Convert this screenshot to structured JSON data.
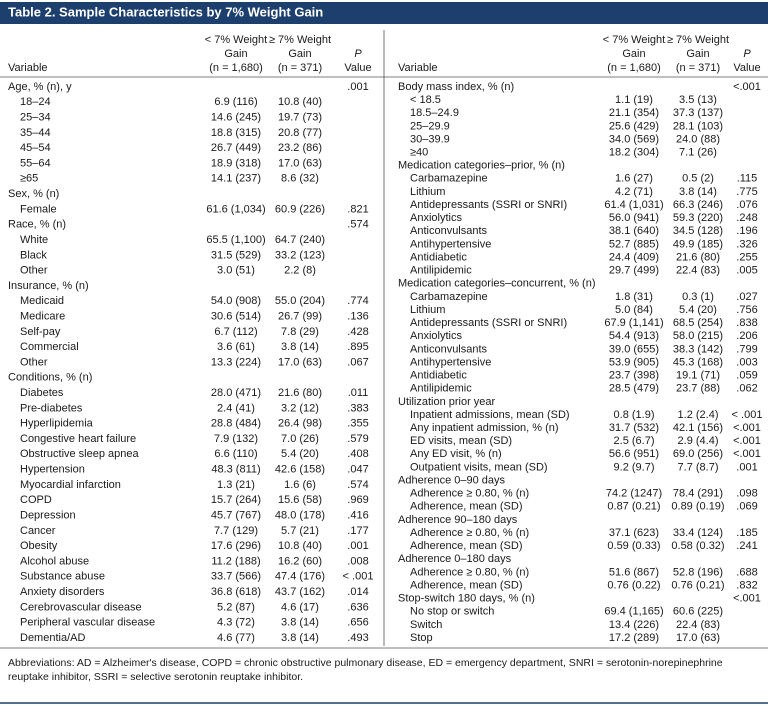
{
  "title": "Table 2. Sample Characteristics by 7% Weight Gain",
  "header": {
    "variable": "Variable",
    "col1": [
      "< 7% Weight",
      "Gain",
      "(n = 1,680)"
    ],
    "col2": [
      "≥ 7% Weight",
      "Gain",
      "(n = 371)"
    ],
    "p": [
      "P",
      "Value"
    ]
  },
  "left": {
    "sections": [
      {
        "label": "Age, % (n), y",
        "p": ".001",
        "rows": [
          [
            "18–24",
            "6.9 (116)",
            "10.8 (40)"
          ],
          [
            "25–34",
            "14.6 (245)",
            "19.7 (73)"
          ],
          [
            "35–44",
            "18.8 (315)",
            "20.8 (77)"
          ],
          [
            "45–54",
            "26.7 (449)",
            "23.2 (86)"
          ],
          [
            "55–64",
            "18.9 (318)",
            "17.0 (63)"
          ],
          [
            "≥65",
            "14.1 (237)",
            "8.6 (32)"
          ]
        ]
      },
      {
        "label": "Sex, % (n)",
        "rows": [
          [
            "Female",
            "61.6 (1,034)",
            "60.9 (226)",
            ".821"
          ]
        ]
      },
      {
        "label": "Race, % (n)",
        "p": ".574",
        "rows": [
          [
            "White",
            "65.5 (1,100)",
            "64.7 (240)"
          ],
          [
            "Black",
            "31.5 (529)",
            "33.2 (123)"
          ],
          [
            "Other",
            "3.0 (51)",
            "2.2 (8)"
          ]
        ]
      },
      {
        "label": "Insurance, % (n)",
        "rows": [
          [
            "Medicaid",
            "54.0 (908)",
            "55.0 (204)",
            ".774"
          ],
          [
            "Medicare",
            "30.6 (514)",
            "26.7 (99)",
            ".136"
          ],
          [
            "Self-pay",
            "6.7 (112)",
            "7.8 (29)",
            ".428"
          ],
          [
            "Commercial",
            "3.6 (61)",
            "3.8 (14)",
            ".895"
          ],
          [
            "Other",
            "13.3 (224)",
            "17.0 (63)",
            ".067"
          ]
        ]
      },
      {
        "label": "Conditions, % (n)",
        "rows": [
          [
            "Diabetes",
            "28.0 (471)",
            "21.6 (80)",
            ".011"
          ],
          [
            "Pre-diabetes",
            "2.4 (41)",
            "3.2 (12)",
            ".383"
          ],
          [
            "Hyperlipidemia",
            "28.8 (484)",
            "26.4 (98)",
            ".355"
          ],
          [
            "Congestive heart failure",
            "7.9 (132)",
            "7.0 (26)",
            ".579"
          ],
          [
            "Obstructive sleep apnea",
            "6.6 (110)",
            "5.4 (20)",
            ".408"
          ],
          [
            "Hypertension",
            "48.3 (811)",
            "42.6 (158)",
            ".047"
          ],
          [
            "Myocardial infarction",
            "1.3 (21)",
            "1.6 (6)",
            ".574"
          ],
          [
            "COPD",
            "15.7 (264)",
            "15.6 (58)",
            ".969"
          ],
          [
            "Depression",
            "45.7 (767)",
            "48.0 (178)",
            ".416"
          ],
          [
            "Cancer",
            "7.7 (129)",
            "5.7 (21)",
            ".177"
          ],
          [
            "Obesity",
            "17.6 (296)",
            "10.8 (40)",
            ".001"
          ],
          [
            "Alcohol abuse",
            "11.2 (188)",
            "16.2 (60)",
            ".008"
          ],
          [
            "Substance abuse",
            "33.7 (566)",
            "47.4 (176)",
            "< .001"
          ],
          [
            "Anxiety disorders",
            "36.8 (618)",
            "43.7 (162)",
            ".014"
          ],
          [
            "Cerebrovascular disease",
            "5.2 (87)",
            "4.6 (17)",
            ".636"
          ],
          [
            "Peripheral vascular disease",
            "4.3 (72)",
            "3.8 (14)",
            ".656"
          ],
          [
            "Dementia/AD",
            "4.6 (77)",
            "3.8 (14)",
            ".493"
          ]
        ]
      }
    ]
  },
  "right": {
    "sections": [
      {
        "label": "Body mass index, % (n)",
        "p": "<.001",
        "rows": [
          [
            "< 18.5",
            "1.1 (19)",
            "3.5 (13)"
          ],
          [
            "18.5–24.9",
            "21.1 (354)",
            "37.3 (137)"
          ],
          [
            "25–29.9",
            "25.6 (429)",
            "28.1 (103)"
          ],
          [
            "30–39.9",
            "34.0 (569)",
            "24.0 (88)"
          ],
          [
            "≥40",
            "18.2 (304)",
            "7.1 (26)"
          ]
        ]
      },
      {
        "label": "Medication categories–prior, % (n)",
        "rows": [
          [
            "Carbamazepine",
            "1.6 (27)",
            "0.5 (2)",
            ".115"
          ],
          [
            "Lithium",
            "4.2 (71)",
            "3.8 (14)",
            ".775"
          ],
          [
            "Antidepressants (SSRI or SNRI)",
            "61.4 (1,031)",
            "66.3 (246)",
            ".076"
          ],
          [
            "Anxiolytics",
            "56.0 (941)",
            "59.3 (220)",
            ".248"
          ],
          [
            "Anticonvulsants",
            "38.1 (640)",
            "34.5 (128)",
            ".196"
          ],
          [
            "Antihypertensive",
            "52.7 (885)",
            "49.9 (185)",
            ".326"
          ],
          [
            "Antidiabetic",
            "24.4 (409)",
            "21.6 (80)",
            ".255"
          ],
          [
            "Antilipidemic",
            "29.7 (499)",
            "22.4 (83)",
            ".005"
          ]
        ]
      },
      {
        "label": "Medication categories–concurrent, % (n)",
        "rows": [
          [
            "Carbamazepine",
            "1.8 (31)",
            "0.3 (1)",
            ".027"
          ],
          [
            "Lithium",
            "5.0 (84)",
            "5.4 (20)",
            ".756"
          ],
          [
            "Antidepressants (SSRI or SNRI)",
            "67.9 (1,141)",
            "68.5 (254)",
            ".838"
          ],
          [
            "Anxiolytics",
            "54.4 (913)",
            "58.0 (215)",
            ".206"
          ],
          [
            "Anticonvulsants",
            "39.0 (655)",
            "38.3 (142)",
            ".799"
          ],
          [
            "Antihypertensive",
            "53.9 (905)",
            "45.3 (168)",
            ".003"
          ],
          [
            "Antidiabetic",
            "23.7 (398)",
            "19.1 (71)",
            ".059"
          ],
          [
            "Antilipidemic",
            "28.5 (479)",
            "23.7 (88)",
            ".062"
          ]
        ]
      },
      {
        "label": "Utilization prior year",
        "rows": [
          [
            "Inpatient admissions, mean (SD)",
            "0.8 (1.9)",
            "1.2 (2.4)",
            "< .001"
          ],
          [
            "Any inpatient admission, % (n)",
            "31.7 (532)",
            "42.1 (156)",
            "<.001"
          ],
          [
            "ED visits, mean (SD)",
            "2.5 (6.7)",
            "2.9 (4.4)",
            "<.001"
          ],
          [
            "Any ED visit, % (n)",
            "56.6 (951)",
            "69.0 (256)",
            "<.001"
          ],
          [
            "Outpatient visits, mean (SD)",
            "9.2 (9.7)",
            "7.7 (8.7)",
            ".001"
          ]
        ]
      },
      {
        "label": "Adherence 0–90 days",
        "rows": [
          [
            "Adherence ≥ 0.80, % (n)",
            "74.2 (1247)",
            "78.4 (291)",
            ".098"
          ],
          [
            "Adherence, mean (SD)",
            "0.87 (0.21)",
            "0.89 (0.19)",
            ".069"
          ]
        ]
      },
      {
        "label": "Adherence 90–180 days",
        "rows": [
          [
            "Adherence ≥ 0.80, % (n)",
            "37.1 (623)",
            "33.4 (124)",
            ".185"
          ],
          [
            "Adherence, mean (SD)",
            "0.59 (0.33)",
            "0.58 (0.32)",
            ".241"
          ]
        ]
      },
      {
        "label": "Adherence 0–180 days",
        "rows": [
          [
            "Adherence ≥ 0.80, % (n)",
            "51.6 (867)",
            "52.8 (196)",
            ".688"
          ],
          [
            "Adherence, mean (SD)",
            "0.76 (0.22)",
            "0.76 (0.21)",
            ".832"
          ]
        ]
      },
      {
        "label": "Stop-switch 180 days, % (n)",
        "p": "<.001",
        "rows": [
          [
            "No stop or switch",
            "69.4 (1,165)",
            "60.6 (225)"
          ],
          [
            "Switch",
            "13.4 (226)",
            "22.4 (83)"
          ],
          [
            "Stop",
            "17.2 (289)",
            "17.0 (63)"
          ]
        ]
      }
    ]
  },
  "footnote": "Abbreviations: AD = Alzheimer's disease, COPD = chronic obstructive pulmonary disease, ED = emergency department, SNRI = serotonin-norepinephrine reuptake inhibitor, SSRI = selective serotonin reuptake inhibitor."
}
